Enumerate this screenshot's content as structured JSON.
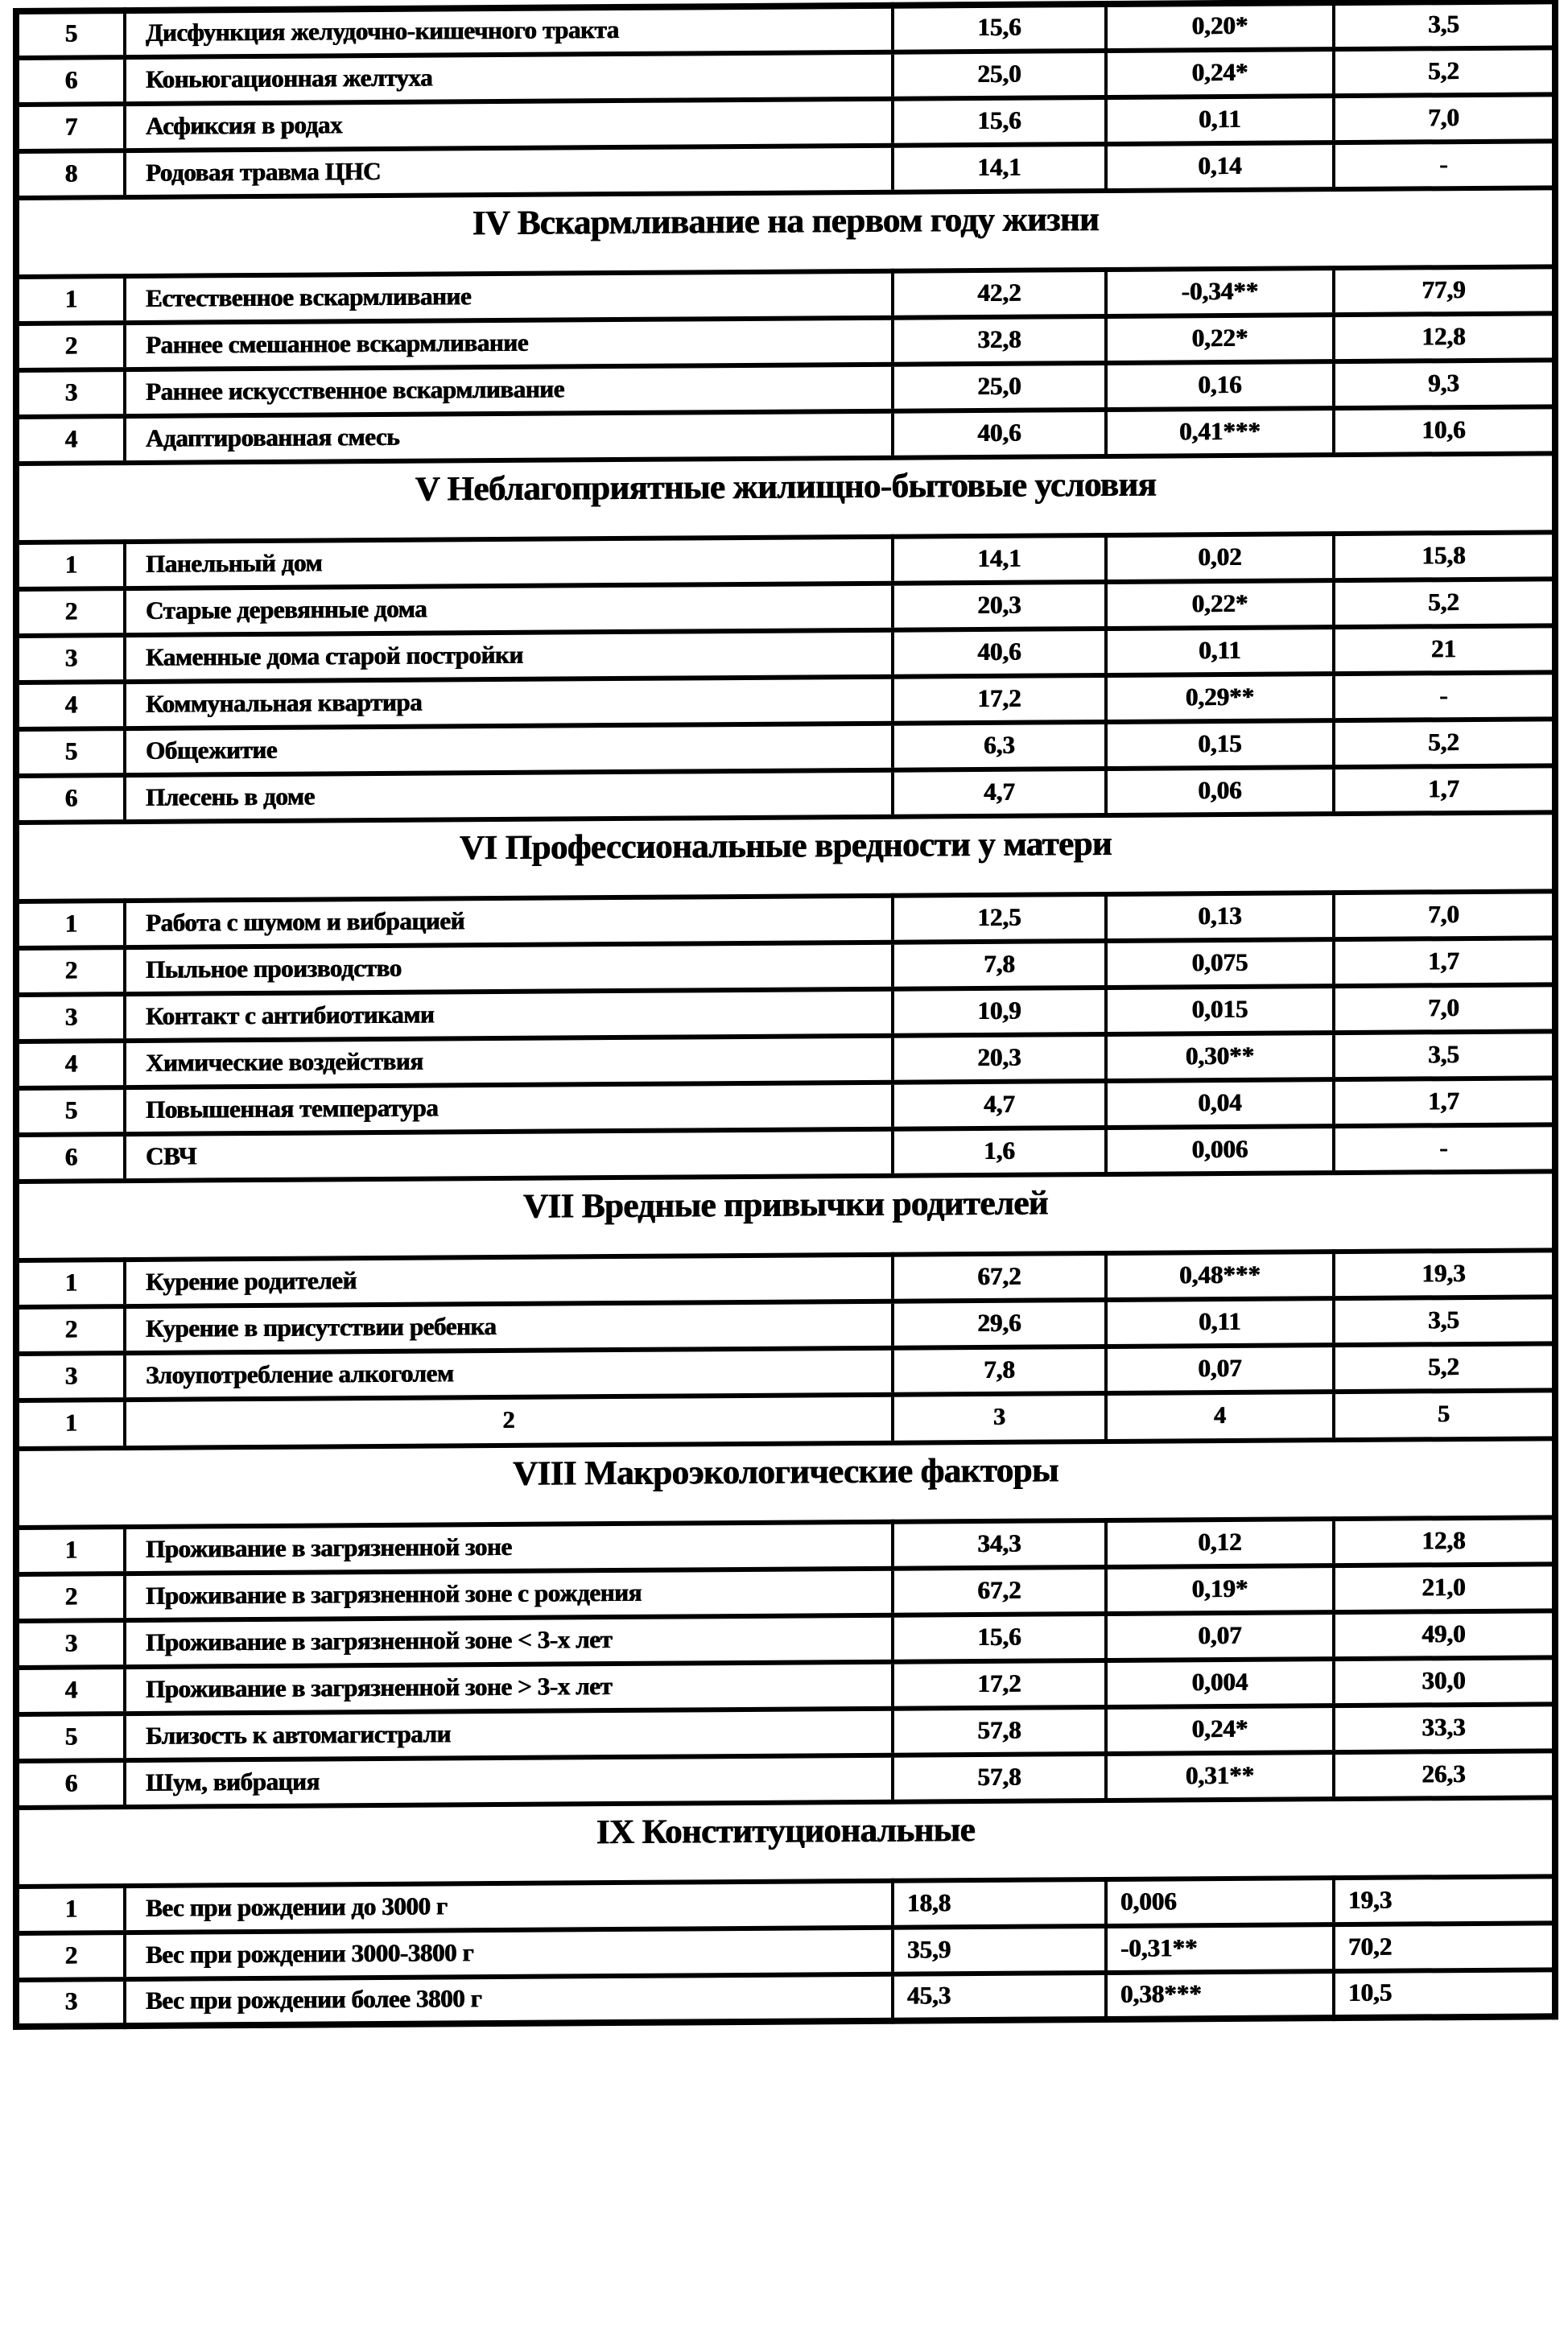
{
  "page": {
    "kind": "scanned document table",
    "language": "ru",
    "ink_color": "#000000",
    "paper_color": "#ffffff"
  },
  "table": {
    "columns_count": 5,
    "blocks": [
      {
        "kind": "rows",
        "rows": [
          [
            "5",
            "Дисфункция желудочно-кишечного тракта",
            "15,6",
            "0,20*",
            "3,5"
          ],
          [
            "6",
            "Коньюгационная желтуха",
            "25,0",
            "0,24*",
            "5,2"
          ],
          [
            "7",
            "Асфиксия в родах",
            "15,6",
            "0,11",
            "7,0"
          ],
          [
            "8",
            "Родовая травма ЦНС",
            "14,1",
            "0,14",
            "-"
          ]
        ]
      },
      {
        "kind": "section",
        "title": "IV Вскармливание на первом году жизни"
      },
      {
        "kind": "rows",
        "rows": [
          [
            "1",
            "Естественное вскармливание",
            "42,2",
            "-0,34**",
            "77,9"
          ],
          [
            "2",
            "Раннее смешанное вскармливание",
            "32,8",
            "0,22*",
            "12,8"
          ],
          [
            "3",
            "Раннее искусственное вскармливание",
            "25,0",
            "0,16",
            "9,3"
          ],
          [
            "4",
            "Адаптированная смесь",
            "40,6",
            "0,41***",
            "10,6"
          ]
        ]
      },
      {
        "kind": "section",
        "title": "V Неблагоприятные жилищно-бытовые условия"
      },
      {
        "kind": "rows",
        "rows": [
          [
            "1",
            "Панельный дом",
            "14,1",
            "0,02",
            "15,8"
          ],
          [
            "2",
            "Старые деревянные дома",
            "20,3",
            "0,22*",
            "5,2"
          ],
          [
            "3",
            "Каменные дома старой постройки",
            "40,6",
            "0,11",
            "21"
          ],
          [
            "4",
            "Коммунальная квартира",
            "17,2",
            "0,29**",
            "-"
          ],
          [
            "5",
            "Общежитие",
            "6,3",
            "0,15",
            "5,2"
          ],
          [
            "6",
            "Плесень в доме",
            "4,7",
            "0,06",
            "1,7"
          ]
        ]
      },
      {
        "kind": "section",
        "title": "VI Профессиональные вредности у матери"
      },
      {
        "kind": "rows",
        "rows": [
          [
            "1",
            "Работа с шумом и вибрацией",
            "12,5",
            "0,13",
            "7,0"
          ],
          [
            "2",
            "Пыльное производство",
            "7,8",
            "0,075",
            "1,7"
          ],
          [
            "3",
            "Контакт с антибиотиками",
            "10,9",
            "0,015",
            "7,0"
          ],
          [
            "4",
            "Химические воздействия",
            "20,3",
            "0,30**",
            "3,5"
          ],
          [
            "5",
            "Повышенная температура",
            "4,7",
            "0,04",
            "1,7"
          ],
          [
            "6",
            "СВЧ",
            "1,6",
            "0,006",
            "-"
          ]
        ]
      },
      {
        "kind": "section",
        "title": "VII Вредные привычки родителей"
      },
      {
        "kind": "rows",
        "rows": [
          [
            "1",
            "Курение родителей",
            "67,2",
            "0,48***",
            "19,3"
          ],
          [
            "2",
            "Курение в присутствии ребенка",
            "29,6",
            "0,11",
            "3,5"
          ],
          [
            "3",
            "Злоупотребление алкоголем",
            "7,8",
            "0,07",
            "5,2"
          ]
        ]
      },
      {
        "kind": "colnums",
        "cells": [
          "1",
          "2",
          "3",
          "4",
          "5"
        ]
      },
      {
        "kind": "section",
        "title": "VIII Макроэкологические факторы"
      },
      {
        "kind": "rows",
        "rows": [
          [
            "1",
            "Проживание в загрязненной зоне",
            "34,3",
            "0,12",
            "12,8"
          ],
          [
            "2",
            "Проживание в загрязненной зоне с рождения",
            "67,2",
            "0,19*",
            "21,0"
          ],
          [
            "3",
            "Проживание в загрязненной зоне < 3-х лет",
            "15,6",
            "0,07",
            "49,0"
          ],
          [
            "4",
            "Проживание в загрязненной зоне > 3-х лет",
            "17,2",
            "0,004",
            "30,0"
          ],
          [
            "5",
            "Близость к автомагистрали",
            "57,8",
            "0,24*",
            "33,3"
          ],
          [
            "6",
            "Шум, вибрация",
            "57,8",
            "0,31**",
            "26,3"
          ]
        ]
      },
      {
        "kind": "section",
        "title": "IX Конституциональные"
      },
      {
        "kind": "rows",
        "value_align": "left",
        "rows": [
          [
            "1",
            "Вес при рождении до 3000 г",
            "18,8",
            "0,006",
            "19,3"
          ],
          [
            "2",
            "Вес при рождении 3000-3800 г",
            "35,9",
            "-0,31**",
            "70,2"
          ],
          [
            "3",
            "Вес при рождении более 3800 г",
            "45,3",
            "0,38***",
            "10,5"
          ]
        ]
      }
    ]
  }
}
